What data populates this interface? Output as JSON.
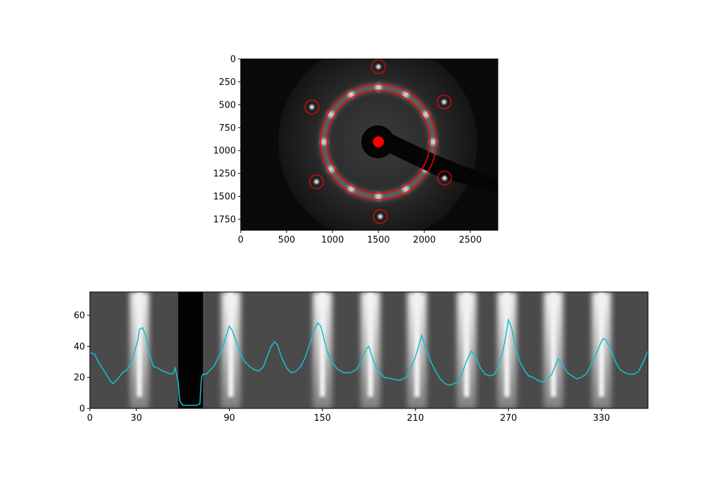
{
  "chart_data": [
    {
      "type": "image",
      "title": "",
      "xlabel": "",
      "ylabel": "",
      "xlim": [
        0,
        2800
      ],
      "ylim": [
        1870,
        0
      ],
      "x_ticks": [
        "0",
        "500",
        "1000",
        "1500",
        "2000",
        "2500"
      ],
      "y_ticks": [
        "0",
        "250",
        "500",
        "750",
        "1000",
        "1250",
        "1500",
        "1750"
      ],
      "center": {
        "x": 1500,
        "y": 905,
        "color": "#ff0000"
      },
      "rings": [
        {
          "r": 560,
          "color": "#ff0000"
        },
        {
          "r": 630,
          "color": "#ff0000"
        }
      ],
      "spot_radius": 75,
      "spots": [
        {
          "x": 1500,
          "y": 85
        },
        {
          "x": 2215,
          "y": 470
        },
        {
          "x": 2220,
          "y": 1300
        },
        {
          "x": 1520,
          "y": 1720
        },
        {
          "x": 825,
          "y": 1340
        },
        {
          "x": 775,
          "y": 525
        }
      ],
      "ring_bright_angles_deg": [
        0,
        30,
        60,
        90,
        120,
        150,
        180,
        210,
        240,
        270,
        300,
        330
      ],
      "beamstop_arm": {
        "start": [
          1500,
          905
        ],
        "end": [
          2800,
          1400
        ]
      }
    },
    {
      "type": "line",
      "title": "",
      "xlabel": "",
      "ylabel": "",
      "xlim": [
        0,
        360
      ],
      "ylim": [
        0,
        75
      ],
      "x_ticks": [
        "0",
        "30",
        "90",
        "150",
        "210",
        "270",
        "330"
      ],
      "y_ticks": [
        "0",
        "20",
        "40",
        "60"
      ],
      "series": [
        {
          "color": "#17becf",
          "x": [
            0,
            3,
            6,
            10,
            13,
            15,
            18,
            21,
            24,
            27,
            29,
            31,
            32,
            34,
            36,
            38,
            41,
            44,
            47,
            50,
            53,
            54,
            55,
            57,
            58,
            60,
            63,
            66,
            69,
            71,
            72,
            73,
            75,
            77,
            80,
            83,
            86,
            88,
            90,
            92,
            94,
            97,
            100,
            103,
            106,
            109,
            112,
            115,
            117,
            119,
            121,
            124,
            127,
            130,
            133,
            136,
            139,
            142,
            145,
            147,
            149,
            151,
            153,
            156,
            160,
            164,
            168,
            172,
            175,
            178,
            180,
            183,
            186,
            190,
            195,
            200,
            204,
            207,
            210,
            212,
            214,
            217,
            220,
            223,
            226,
            229,
            232,
            235,
            238,
            240,
            242,
            244,
            246,
            249,
            252,
            255,
            258,
            261,
            263,
            266,
            268,
            270,
            272,
            274,
            277,
            280,
            283,
            286,
            289,
            292,
            295,
            298,
            300,
            302,
            305,
            308,
            311,
            314,
            317,
            320,
            324,
            327,
            329,
            331,
            333,
            336,
            339,
            342,
            345,
            348,
            351,
            354,
            357,
            360
          ],
          "y": [
            36,
            35,
            29,
            23,
            18,
            16,
            19,
            23,
            25,
            30,
            37,
            44,
            51,
            52,
            47,
            36,
            27,
            26,
            24,
            23,
            22,
            23,
            26,
            17,
            5,
            2,
            2,
            2,
            2,
            3,
            20,
            22,
            22,
            24,
            27,
            33,
            40,
            47,
            53,
            50,
            44,
            36,
            30,
            27,
            25,
            24,
            27,
            35,
            40,
            43,
            41,
            32,
            26,
            23,
            24,
            27,
            33,
            42,
            51,
            55,
            53,
            45,
            37,
            30,
            25,
            23,
            23,
            25,
            30,
            38,
            40,
            30,
            24,
            20,
            19,
            18,
            20,
            26,
            33,
            40,
            47,
            38,
            30,
            24,
            19,
            16,
            15,
            16,
            17,
            22,
            28,
            33,
            37,
            33,
            26,
            22,
            21,
            22,
            26,
            35,
            45,
            57,
            52,
            42,
            31,
            25,
            21,
            20,
            18,
            17,
            19,
            22,
            27,
            32,
            28,
            23,
            21,
            19,
            20,
            22,
            29,
            36,
            41,
            45,
            44,
            38,
            30,
            25,
            23,
            22,
            22,
            24,
            30,
            37
          ]
        }
      ],
      "dark_band": {
        "x": [
          57,
          73
        ]
      },
      "bright_bands_x": [
        32,
        91,
        150,
        181,
        211,
        243,
        269,
        299,
        330
      ]
    }
  ]
}
